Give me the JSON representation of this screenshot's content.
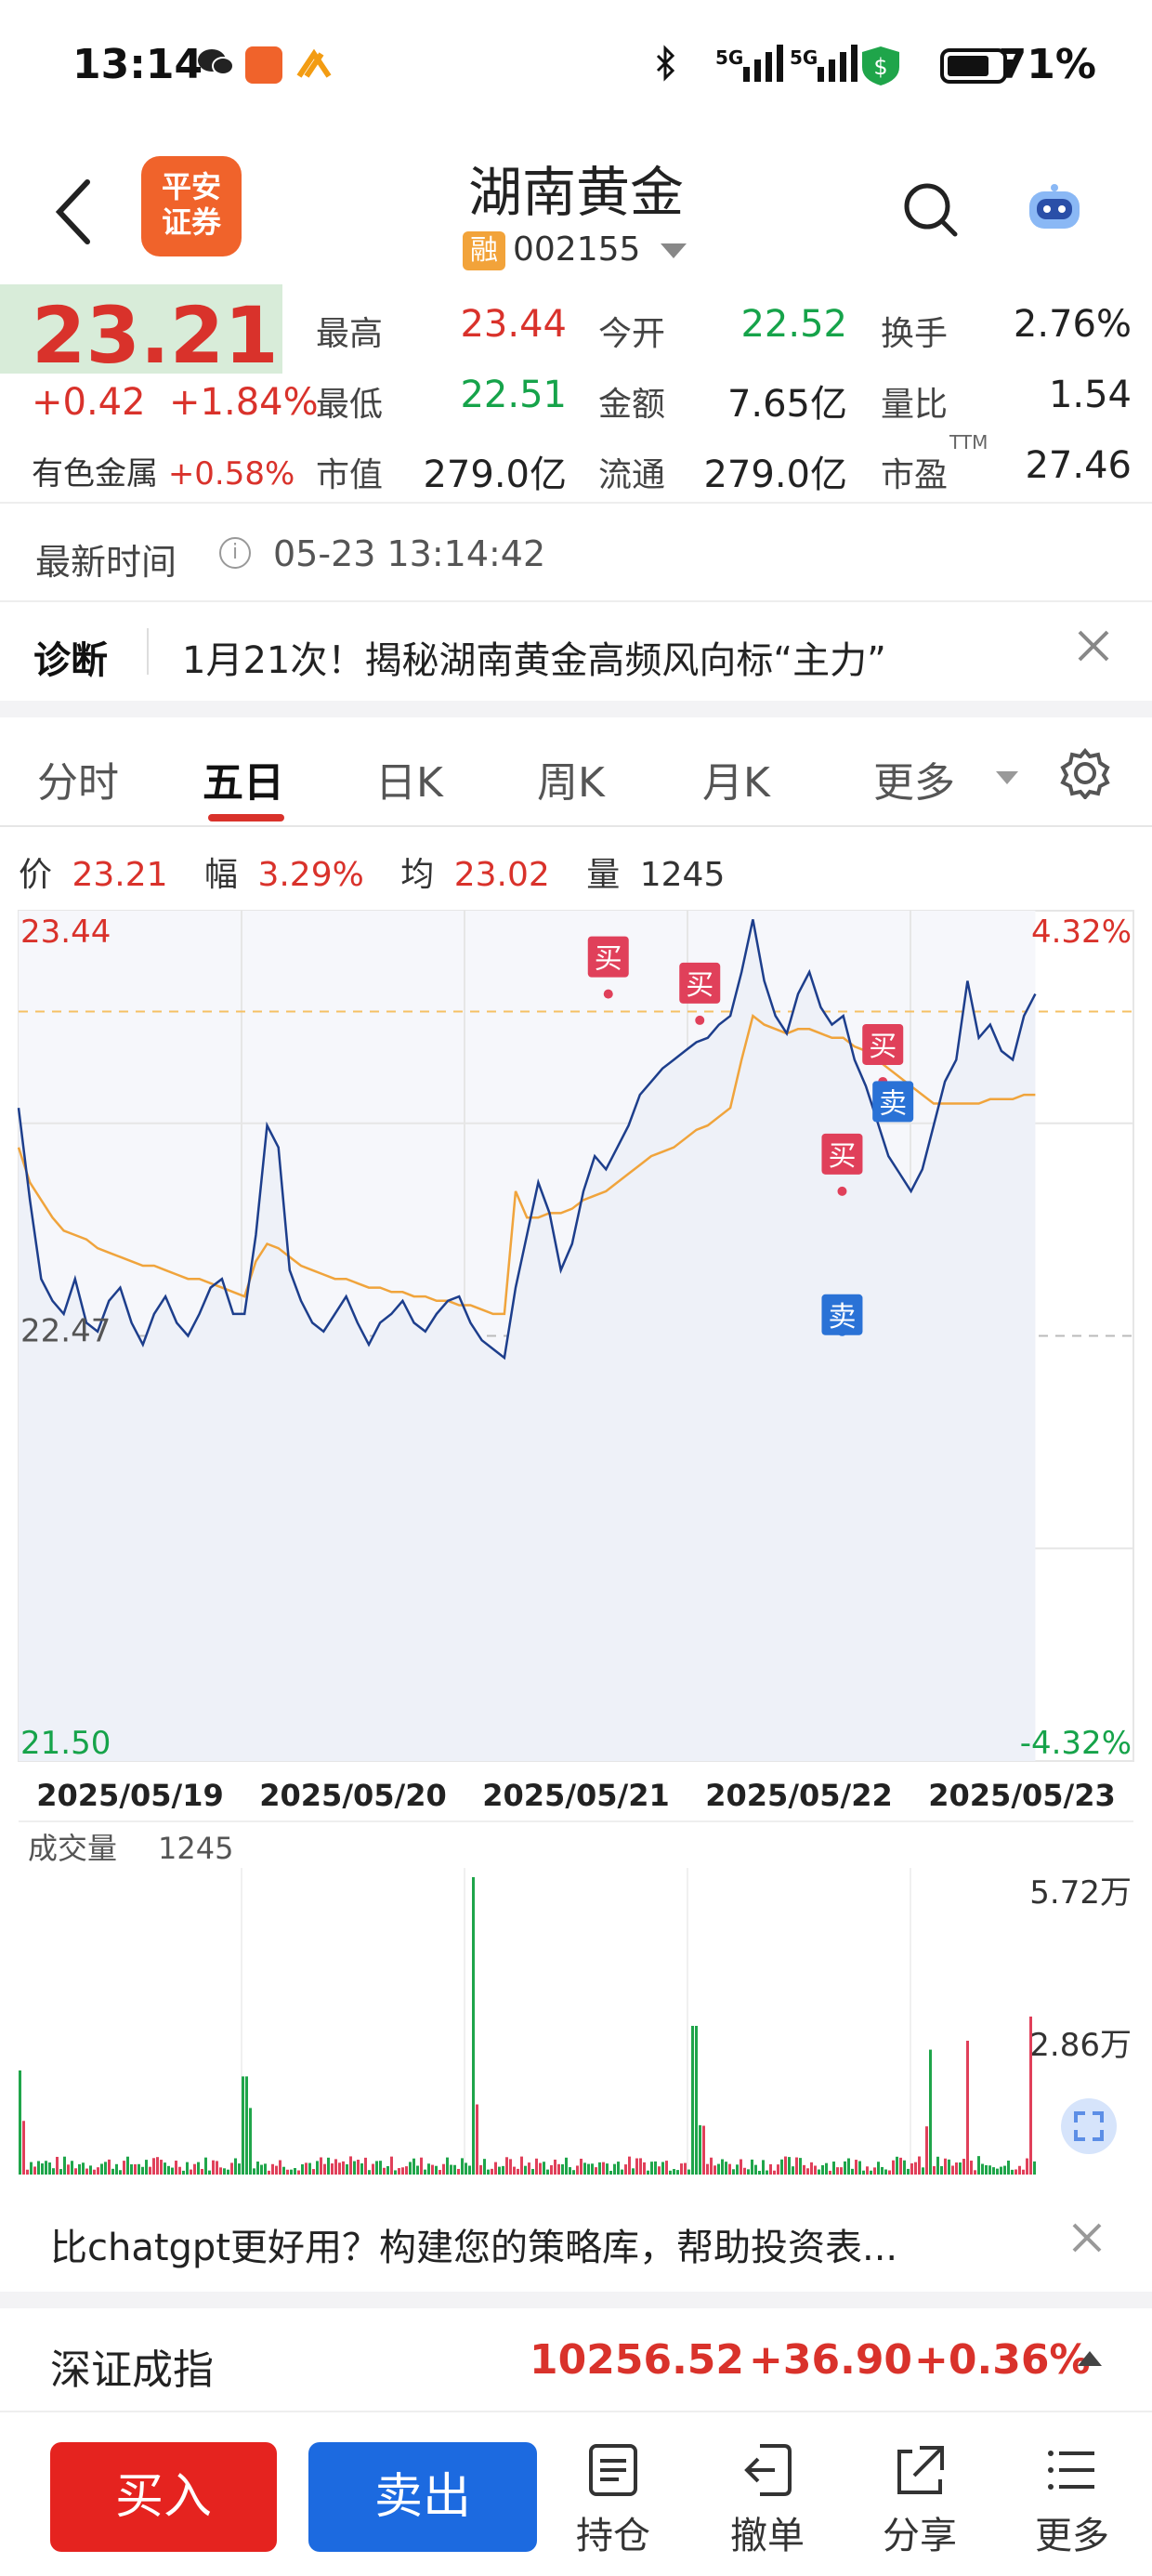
{
  "status_bar": {
    "time": "13:14",
    "battery": "71%",
    "signal_1": "5G",
    "signal_2": "5G"
  },
  "header": {
    "broker_logo_text": "平安证券",
    "stock_name": "湖南黄金",
    "margin_badge": "融",
    "stock_code": "002155"
  },
  "quote": {
    "price": "23.21",
    "change": "+0.42",
    "change_pct": "+1.84%",
    "sector_name": "有色金属",
    "sector_pct": "+0.58%",
    "cells": [
      {
        "label": "最高",
        "value": "23.44",
        "color": "#d9322b"
      },
      {
        "label": "今开",
        "value": "22.52",
        "color": "#16a34a"
      },
      {
        "label": "换手",
        "value": "2.76%",
        "color": "#222222"
      },
      {
        "label": "最低",
        "value": "22.51",
        "color": "#16a34a"
      },
      {
        "label": "金额",
        "value": "7.65亿",
        "color": "#222222"
      },
      {
        "label": "量比",
        "value": "1.54",
        "color": "#222222"
      },
      {
        "label": "市值",
        "value": "279.0亿",
        "color": "#222222"
      },
      {
        "label": "流通",
        "value": "279.0亿",
        "color": "#222222"
      },
      {
        "label": "市盈",
        "value": "27.46",
        "color": "#222222"
      }
    ],
    "ttm_label": "TTM"
  },
  "latest_time": {
    "label": "最新时间",
    "value": "05-23 13:14:42"
  },
  "diagnosis": {
    "label": "诊断",
    "text": "1月21次！揭秘湖南黄金高频风向标“主力”"
  },
  "tabs": [
    "分时",
    "五日",
    "日K",
    "周K",
    "月K",
    "更多"
  ],
  "active_tab": "五日",
  "info_row": {
    "price_label": "价",
    "price": "23.21",
    "amp_label": "幅",
    "amp": "3.29%",
    "avg_label": "均",
    "avg": "23.02",
    "vol_label": "量",
    "vol": "1245"
  },
  "chart_data": {
    "type": "line",
    "y_max_label": "23.44",
    "y_min_label": "21.50",
    "y_ref_label": "22.47",
    "pct_max_label": "4.32%",
    "pct_min_label": "-4.32%",
    "x_labels": [
      "2025/05/19",
      "2025/05/20",
      "2025/05/21",
      "2025/05/22",
      "2025/05/23"
    ],
    "ylim": [
      21.5,
      23.44
    ],
    "prev_close": 22.47,
    "series": [
      {
        "name": "价",
        "values": [
          22.99,
          22.78,
          22.6,
          22.55,
          22.52,
          22.6,
          22.5,
          22.48,
          22.55,
          22.58,
          22.5,
          22.45,
          22.52,
          22.56,
          22.5,
          22.47,
          22.52,
          22.58,
          22.6,
          22.52,
          22.52,
          22.7,
          22.95,
          22.9,
          22.62,
          22.55,
          22.5,
          22.48,
          22.52,
          22.56,
          22.5,
          22.45,
          22.5,
          22.52,
          22.55,
          22.5,
          22.48,
          22.52,
          22.55,
          22.56,
          22.5,
          22.46,
          22.44,
          22.42,
          22.58,
          22.7,
          22.82,
          22.75,
          22.62,
          22.68,
          22.8,
          22.88,
          22.85,
          22.9,
          22.95,
          23.02,
          23.05,
          23.08,
          23.1,
          23.12,
          23.14,
          23.15,
          23.18,
          23.2,
          23.3,
          23.42,
          23.28,
          23.2,
          23.16,
          23.25,
          23.3,
          23.22,
          23.18,
          23.2,
          23.1,
          23.04,
          22.96,
          22.88,
          22.84,
          22.8,
          22.85,
          22.95,
          23.05,
          23.1,
          23.28,
          23.15,
          23.18,
          23.12,
          23.1,
          23.2,
          23.25
        ]
      },
      {
        "name": "均",
        "values": [
          22.9,
          22.82,
          22.78,
          22.74,
          22.71,
          22.7,
          22.69,
          22.67,
          22.66,
          22.65,
          22.64,
          22.63,
          22.63,
          22.62,
          22.61,
          22.6,
          22.6,
          22.59,
          22.58,
          22.57,
          22.56,
          22.64,
          22.68,
          22.67,
          22.65,
          22.63,
          22.62,
          22.61,
          22.6,
          22.6,
          22.59,
          22.58,
          22.58,
          22.57,
          22.57,
          22.56,
          22.56,
          22.55,
          22.55,
          22.54,
          22.54,
          22.53,
          22.52,
          22.52,
          22.8,
          22.74,
          22.74,
          22.75,
          22.75,
          22.76,
          22.78,
          22.79,
          22.8,
          22.82,
          22.84,
          22.86,
          22.88,
          22.89,
          22.9,
          22.92,
          22.94,
          22.95,
          22.97,
          22.99,
          23.1,
          23.2,
          23.18,
          23.17,
          23.16,
          23.17,
          23.17,
          23.16,
          23.15,
          23.15,
          23.13,
          23.12,
          23.1,
          23.08,
          23.06,
          23.04,
          23.02,
          23.0,
          23.0,
          23.0,
          23.0,
          23.0,
          23.01,
          23.01,
          23.01,
          23.02,
          23.02
        ]
      }
    ],
    "signals": [
      {
        "label": "买",
        "type": "buy",
        "at": 0.58,
        "value": 23.25
      },
      {
        "label": "买",
        "type": "buy",
        "at": 0.67,
        "value": 23.19
      },
      {
        "label": "买",
        "type": "buy",
        "at": 0.85,
        "value": 23.05
      },
      {
        "label": "卖",
        "type": "sell",
        "at": 0.86,
        "value": 23.03
      },
      {
        "label": "买",
        "type": "buy",
        "at": 0.81,
        "value": 22.8
      },
      {
        "label": "卖",
        "type": "sell",
        "at": 0.81,
        "value": 22.48
      }
    ]
  },
  "volume": {
    "label": "成交量",
    "value": "1245",
    "max_label": "5.72万",
    "mid_label": "2.86万"
  },
  "promo": {
    "text": "比chatgpt更好用？构建您的策略库，帮助投资表..."
  },
  "index": {
    "name": "深证成指",
    "value": "10256.52",
    "change": "+36.90",
    "pct": "+0.36%"
  },
  "bottom_bar": {
    "buy": "买入",
    "sell": "卖出",
    "tools": [
      "持仓",
      "撤单",
      "分享",
      "更多"
    ]
  }
}
